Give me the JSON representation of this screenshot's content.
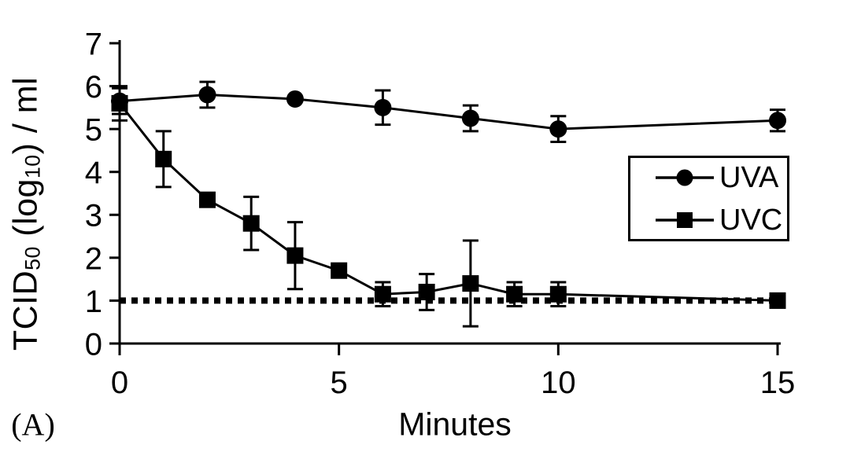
{
  "colors": {
    "foreground": "#000000",
    "background": "#ffffff"
  },
  "labels": {
    "y_parts": [
      {
        "text": "TCID"
      },
      {
        "text": "50",
        "sub": true
      },
      {
        "text": " (log"
      },
      {
        "text": "10",
        "sub": true
      },
      {
        "text": ") / ml"
      }
    ]
  },
  "legend": {
    "items": [
      {
        "label": "UVA",
        "marker": "circle"
      },
      {
        "label": "UVC",
        "marker": "square"
      }
    ]
  },
  "chart_data": {
    "type": "line",
    "title": "",
    "xlabel": "Minutes",
    "ylabel": "TCID50 (log10) / ml",
    "panel_label": "(A)",
    "xlim": [
      0,
      15
    ],
    "ylim": [
      0,
      7
    ],
    "x_ticks": [
      0,
      5,
      10,
      15
    ],
    "y_ticks": [
      0,
      1,
      2,
      3,
      4,
      5,
      6,
      7
    ],
    "grid": false,
    "legend_position": "inside-right",
    "series": [
      {
        "name": "UVA",
        "marker": "circle",
        "x": [
          0,
          2,
          4,
          6,
          8,
          10,
          15
        ],
        "y": [
          5.65,
          5.8,
          5.7,
          5.5,
          5.25,
          5.0,
          5.2
        ],
        "err": [
          0.3,
          0.3,
          0,
          0.4,
          0.3,
          0.3,
          0.25
        ]
      },
      {
        "name": "UVC",
        "marker": "square",
        "x": [
          0,
          1,
          2,
          3,
          4,
          5,
          6,
          7,
          8,
          9,
          10,
          15
        ],
        "y": [
          5.6,
          4.3,
          3.35,
          2.8,
          2.05,
          1.7,
          1.15,
          1.2,
          1.4,
          1.15,
          1.15,
          1.0
        ],
        "err": [
          0.4,
          0.65,
          0,
          0.62,
          0.78,
          0,
          0.28,
          0.42,
          1.0,
          0.28,
          0.28,
          0
        ]
      }
    ],
    "reference_line": {
      "y": 1,
      "style": "dotted"
    }
  }
}
